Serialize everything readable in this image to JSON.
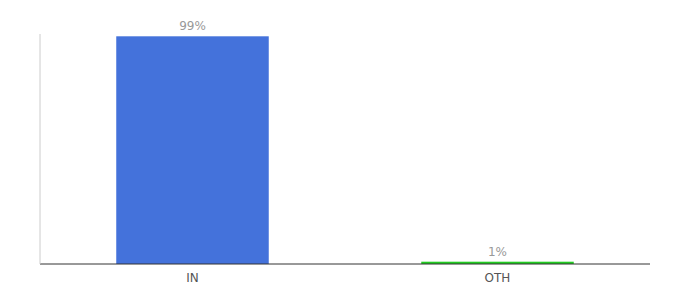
{
  "chart_data": {
    "type": "bar",
    "categories": [
      "IN",
      "OTH"
    ],
    "values": [
      99,
      1
    ],
    "colors": [
      "#4472db",
      "#22cc22"
    ],
    "value_labels": [
      "99%",
      "1%"
    ],
    "data_labels": true,
    "ylim": [
      0,
      100
    ],
    "yticks": [],
    "tick_labels": "x",
    "grid": false
  }
}
